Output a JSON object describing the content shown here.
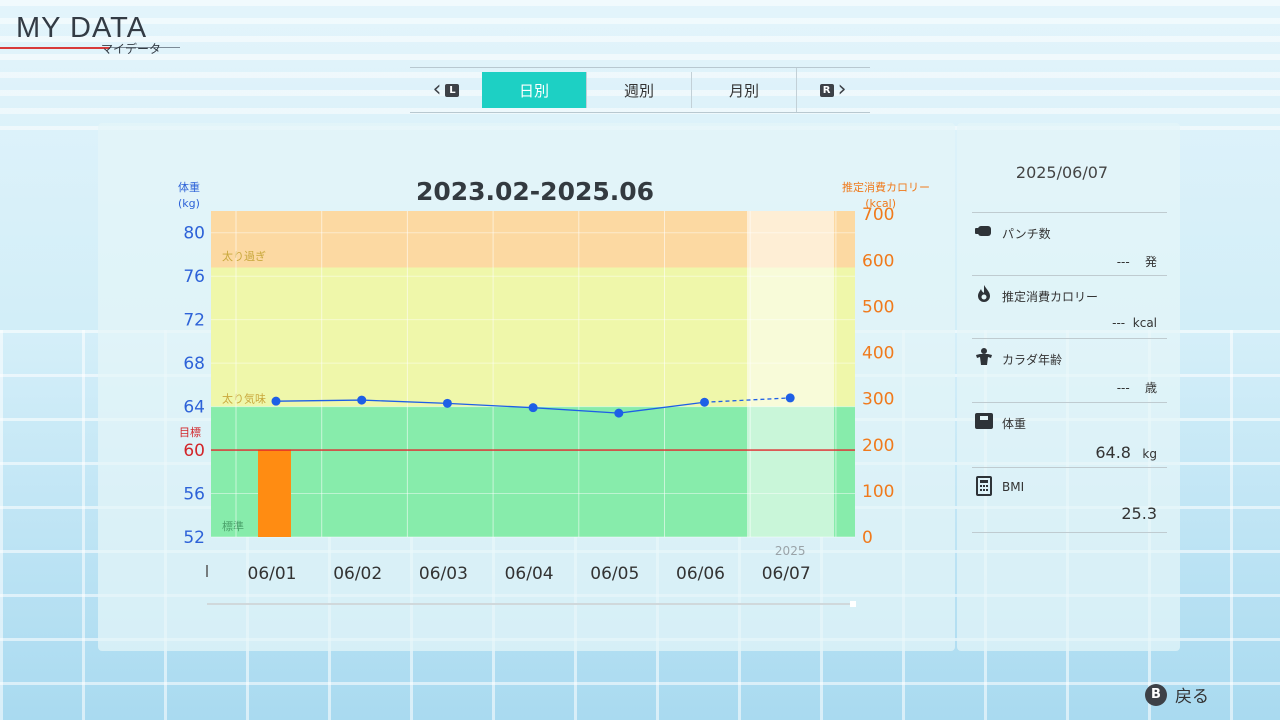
{
  "header": {
    "title": "MY DATA",
    "subtitle": "マイデータ"
  },
  "tabs": {
    "left_button": "L",
    "right_button": "R",
    "items": [
      {
        "label": "日別",
        "active": true
      },
      {
        "label": "週別",
        "active": false
      },
      {
        "label": "月別",
        "active": false
      }
    ]
  },
  "chart_data": {
    "type": "line",
    "title": "2023.02-2025.06",
    "left_axis": {
      "label": "体重",
      "unit": "(kg)",
      "ticks": [
        52,
        56,
        60,
        64,
        68,
        72,
        76,
        80
      ],
      "range": [
        52,
        82
      ]
    },
    "right_axis": {
      "label": "推定消費カロリー",
      "unit": "(kcal)",
      "ticks": [
        0,
        100,
        200,
        300,
        400,
        500,
        600,
        700
      ],
      "range": [
        0,
        707
      ]
    },
    "categories": [
      "06/01",
      "06/02",
      "06/03",
      "06/04",
      "06/05",
      "06/06",
      "06/07"
    ],
    "year_label": "2025",
    "weight_series": {
      "values": [
        64.5,
        64.6,
        64.3,
        63.9,
        63.4,
        64.4,
        64.8
      ],
      "color": "#1e5fe6"
    },
    "calorie_bars": {
      "values": [
        190,
        0,
        0,
        0,
        0,
        0,
        0
      ],
      "color": "#ff8c12"
    },
    "goal": {
      "label": "目標",
      "value": 60,
      "color": "#e0262a"
    },
    "zones": [
      {
        "label": "太り過ぎ",
        "from": 76.8,
        "to": 82,
        "color": "#fcd9a2"
      },
      {
        "label": "太り気味",
        "from": 64,
        "to": 76.8,
        "color": "#eff7aa"
      },
      {
        "label": "標準",
        "from": 52,
        "to": 64,
        "color": "#87ecab"
      }
    ],
    "grid": true
  },
  "side": {
    "date": "2025/06/07",
    "items": [
      {
        "icon": "punch-icon",
        "label": "パンチ数",
        "value": "---",
        "unit": "発"
      },
      {
        "icon": "flame-icon",
        "label": "推定消費カロリー",
        "value": "---",
        "unit": "kcal"
      },
      {
        "icon": "muscle-icon",
        "label": "カラダ年齢",
        "value": "---",
        "unit": "歳"
      },
      {
        "icon": "scale-icon",
        "label": "体重",
        "value": "64.8",
        "unit": "kg"
      },
      {
        "icon": "calculator-icon",
        "label": "BMI",
        "value": "25.3",
        "unit": ""
      }
    ]
  },
  "footer": {
    "button": "B",
    "label": "戻る"
  }
}
